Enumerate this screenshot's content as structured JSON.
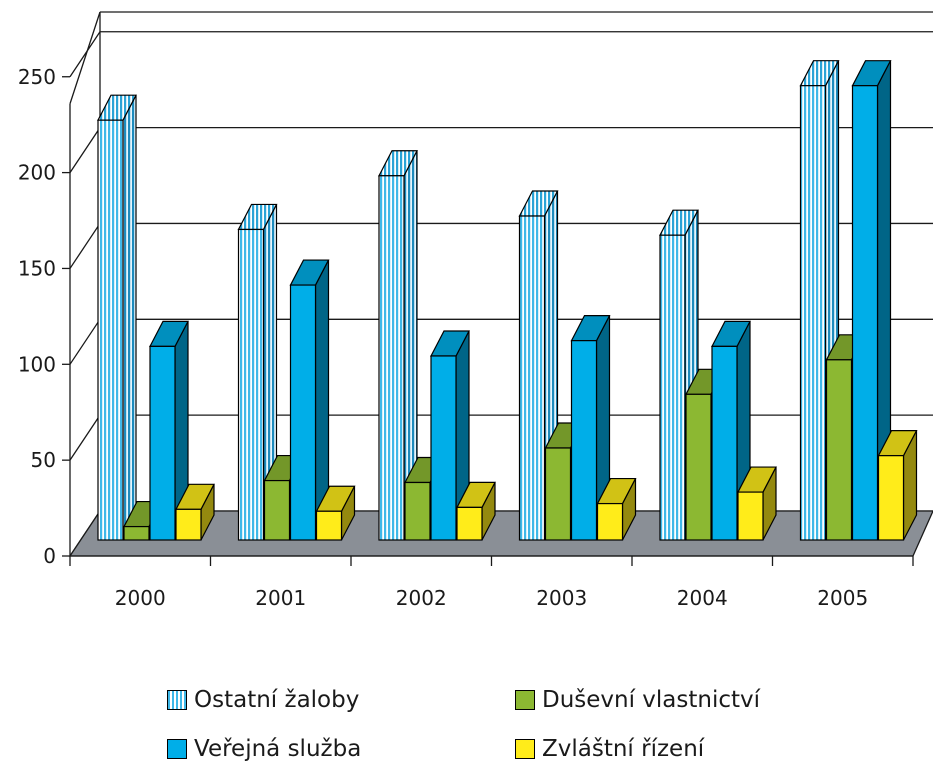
{
  "chart_data": {
    "type": "bar",
    "variant": "3d-clustered",
    "categories": [
      "2000",
      "2001",
      "2002",
      "2003",
      "2004",
      "2005"
    ],
    "y_ticks": [
      "0",
      "50",
      "100",
      "150",
      "200",
      "250"
    ],
    "ylim": [
      0,
      250
    ],
    "grid": true,
    "legend_position": "bottom",
    "series": [
      {
        "name": "Ostatní žaloby",
        "values": [
          219,
          162,
          190,
          169,
          159,
          237
        ],
        "color": "#3fb8e8",
        "pattern": "vertical-stripes"
      },
      {
        "name": "Duševní vlastnictví",
        "values": [
          7,
          31,
          30,
          48,
          76,
          94
        ],
        "color": "#8cb832",
        "pattern": "solid"
      },
      {
        "name": "Veřejná služba",
        "values": [
          101,
          133,
          96,
          104,
          101,
          237
        ],
        "color": "#00aee8",
        "pattern": "solid"
      },
      {
        "name": "Zvláštní řízení",
        "values": [
          16,
          15,
          17,
          19,
          25,
          44
        ],
        "color": "#ffec1a",
        "pattern": "solid"
      }
    ]
  }
}
